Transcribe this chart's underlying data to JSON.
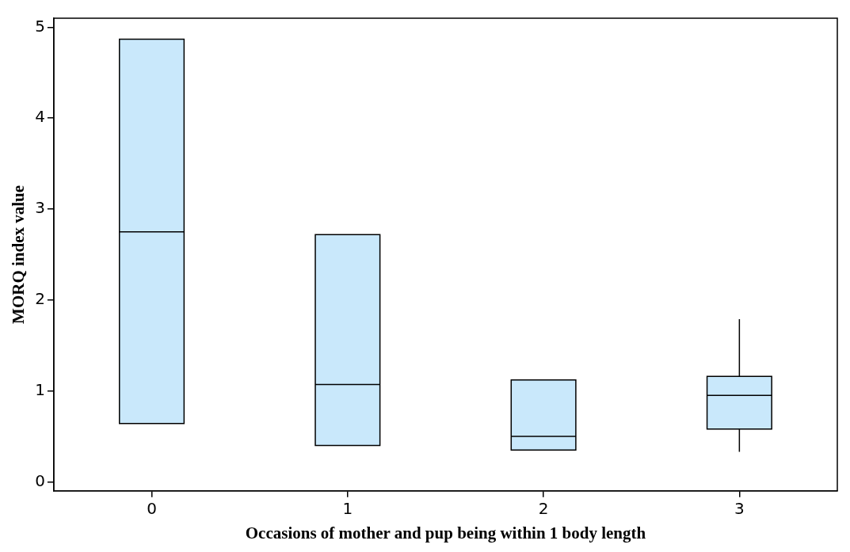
{
  "chart_data": {
    "type": "box",
    "xlabel": "Occasions of mother and pup being within 1 body length",
    "ylabel": "MORQ index value",
    "categories": [
      "0",
      "1",
      "2",
      "3"
    ],
    "color": "#c9e8fb",
    "boxes": [
      {
        "low": 0.64,
        "q1": 0.64,
        "median": 2.75,
        "q3": 4.87,
        "high": 4.87
      },
      {
        "low": 0.4,
        "q1": 0.4,
        "median": 1.07,
        "q3": 2.72,
        "high": 2.72
      },
      {
        "low": 0.35,
        "q1": 0.35,
        "median": 0.5,
        "q3": 1.12,
        "high": 1.12
      },
      {
        "low": 0.33,
        "q1": 0.58,
        "median": 0.95,
        "q3": 1.16,
        "high": 1.79
      }
    ],
    "ylim": [
      -0.1,
      5.1
    ],
    "yticks": [
      0,
      1,
      2,
      3,
      4,
      5
    ],
    "grid": false,
    "legend": false
  }
}
